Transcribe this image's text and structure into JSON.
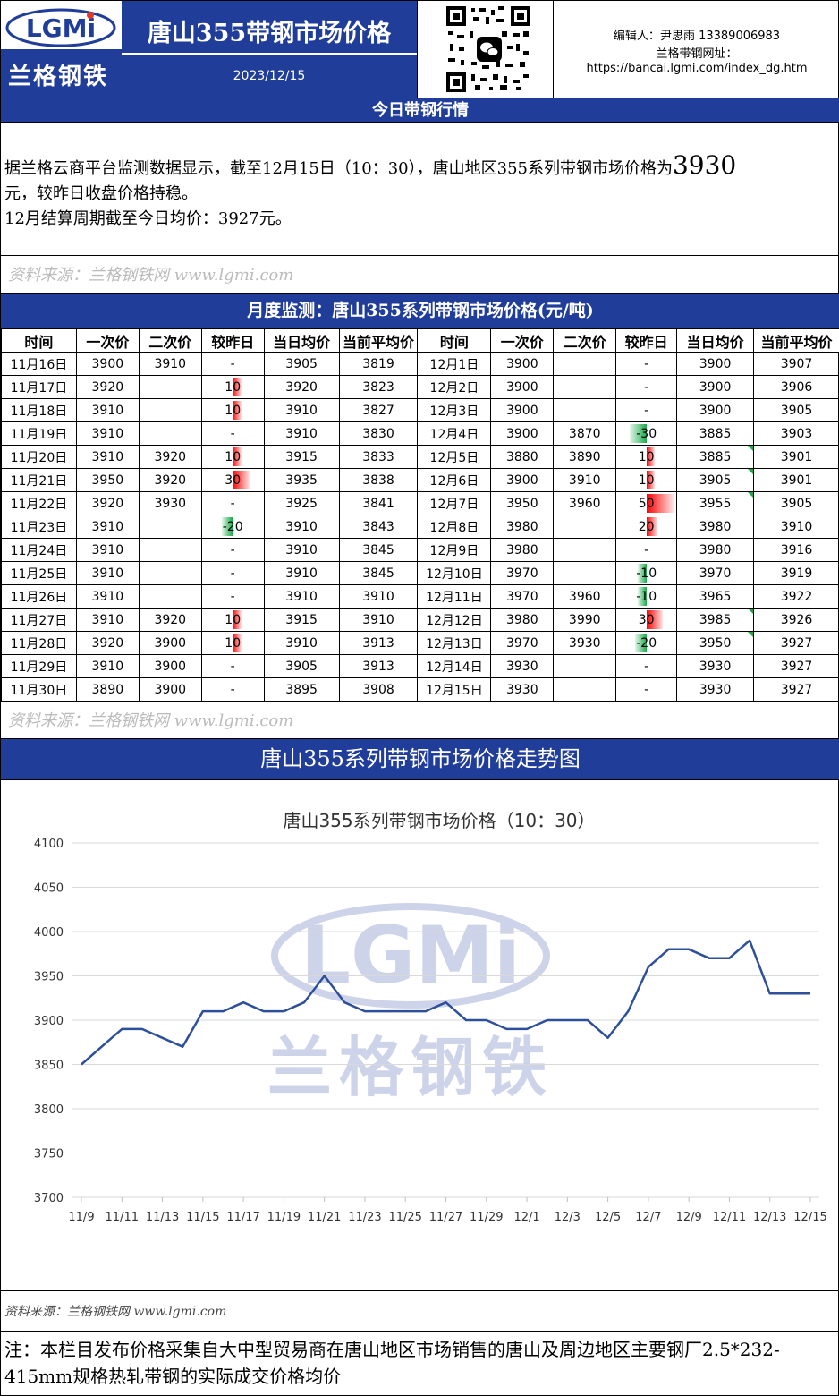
{
  "header": {
    "logo_text": "LGMi",
    "logo_cn": "兰格钢铁",
    "title": "唐山355带钢市场价格",
    "date": "2023/12/15",
    "editor_label": "编辑人：",
    "editor_name": "尹思雨",
    "editor_phone": "13389006983",
    "site_label": "兰格带钢网址：",
    "site_url": "https://bancai.lgmi.com/index_dg.htm"
  },
  "today": {
    "bar_title": "今日带钢行情",
    "line1_prefix": "据兰格云商平台监测数据显示，截至12月15日（10：30），唐山地区355系列带钢市场价格为",
    "price": "3930",
    "line2": "元，较昨日收盘价格持稳。",
    "line3": "12月结算周期截至今日均价：3927元。",
    "source": "资料来源：兰格钢铁网 www.lgmi.com"
  },
  "monthly": {
    "bar_title": "月度监测：唐山355系列带钢市场价格(元/吨)",
    "headers": [
      "时间",
      "一次价",
      "二次价",
      "较昨日",
      "当日均价",
      "当前平均价",
      "时间",
      "一次价",
      "二次价",
      "较昨日",
      "当日均价",
      "当前平均价"
    ],
    "left_rows": [
      {
        "date": "11月16日",
        "p1": "3900",
        "p2": "3910",
        "cmp": "-",
        "avg": "3905",
        "cur": "3819"
      },
      {
        "date": "11月17日",
        "p1": "3920",
        "p2": "",
        "cmp": "10",
        "avg": "3920",
        "cur": "3823"
      },
      {
        "date": "11月18日",
        "p1": "3910",
        "p2": "",
        "cmp": "10",
        "avg": "3910",
        "cur": "3827"
      },
      {
        "date": "11月19日",
        "p1": "3910",
        "p2": "",
        "cmp": "-",
        "avg": "3910",
        "cur": "3830"
      },
      {
        "date": "11月20日",
        "p1": "3910",
        "p2": "3920",
        "cmp": "10",
        "avg": "3915",
        "cur": "3833"
      },
      {
        "date": "11月21日",
        "p1": "3950",
        "p2": "3920",
        "cmp": "30",
        "avg": "3935",
        "cur": "3838"
      },
      {
        "date": "11月22日",
        "p1": "3920",
        "p2": "3930",
        "cmp": "-",
        "avg": "3925",
        "cur": "3841"
      },
      {
        "date": "11月23日",
        "p1": "3910",
        "p2": "",
        "cmp": "-20",
        "avg": "3910",
        "cur": "3843"
      },
      {
        "date": "11月24日",
        "p1": "3910",
        "p2": "",
        "cmp": "-",
        "avg": "3910",
        "cur": "3845"
      },
      {
        "date": "11月25日",
        "p1": "3910",
        "p2": "",
        "cmp": "-",
        "avg": "3910",
        "cur": "3845"
      },
      {
        "date": "11月26日",
        "p1": "3910",
        "p2": "",
        "cmp": "-",
        "avg": "3910",
        "cur": "3910"
      },
      {
        "date": "11月27日",
        "p1": "3910",
        "p2": "3920",
        "cmp": "10",
        "avg": "3915",
        "cur": "3910"
      },
      {
        "date": "11月28日",
        "p1": "3920",
        "p2": "3900",
        "cmp": "10",
        "avg": "3910",
        "cur": "3913"
      },
      {
        "date": "11月29日",
        "p1": "3910",
        "p2": "3900",
        "cmp": "-",
        "avg": "3905",
        "cur": "3913"
      },
      {
        "date": "11月30日",
        "p1": "3890",
        "p2": "3900",
        "cmp": "-",
        "avg": "3895",
        "cur": "3908"
      }
    ],
    "right_rows": [
      {
        "date": "12月1日",
        "p1": "3900",
        "p2": "",
        "cmp": "-",
        "avg": "3900",
        "cur": "3907",
        "mark": false
      },
      {
        "date": "12月2日",
        "p1": "3900",
        "p2": "",
        "cmp": "-",
        "avg": "3900",
        "cur": "3906",
        "mark": false
      },
      {
        "date": "12月3日",
        "p1": "3900",
        "p2": "",
        "cmp": "-",
        "avg": "3900",
        "cur": "3905",
        "mark": false
      },
      {
        "date": "12月4日",
        "p1": "3900",
        "p2": "3870",
        "cmp": "-30",
        "avg": "3885",
        "cur": "3903",
        "mark": false
      },
      {
        "date": "12月5日",
        "p1": "3880",
        "p2": "3890",
        "cmp": "10",
        "avg": "3885",
        "cur": "3901",
        "mark": true
      },
      {
        "date": "12月6日",
        "p1": "3900",
        "p2": "3910",
        "cmp": "10",
        "avg": "3905",
        "cur": "3901",
        "mark": true
      },
      {
        "date": "12月7日",
        "p1": "3950",
        "p2": "3960",
        "cmp": "50",
        "avg": "3955",
        "cur": "3905",
        "mark": true
      },
      {
        "date": "12月8日",
        "p1": "3980",
        "p2": "",
        "cmp": "20",
        "avg": "3980",
        "cur": "3910",
        "mark": false
      },
      {
        "date": "12月9日",
        "p1": "3980",
        "p2": "",
        "cmp": "-",
        "avg": "3980",
        "cur": "3916",
        "mark": false
      },
      {
        "date": "12月10日",
        "p1": "3970",
        "p2": "",
        "cmp": "-10",
        "avg": "3970",
        "cur": "3919",
        "mark": false
      },
      {
        "date": "12月11日",
        "p1": "3970",
        "p2": "3960",
        "cmp": "-10",
        "avg": "3965",
        "cur": "3922",
        "mark": false
      },
      {
        "date": "12月12日",
        "p1": "3980",
        "p2": "3990",
        "cmp": "30",
        "avg": "3985",
        "cur": "3926",
        "mark": true
      },
      {
        "date": "12月13日",
        "p1": "3970",
        "p2": "3930",
        "cmp": "-20",
        "avg": "3950",
        "cur": "3927",
        "mark": true
      },
      {
        "date": "12月14日",
        "p1": "3930",
        "p2": "",
        "cmp": "-",
        "avg": "3930",
        "cur": "3927",
        "mark": false
      },
      {
        "date": "12月15日",
        "p1": "3930",
        "p2": "",
        "cmp": "-",
        "avg": "3930",
        "cur": "3927",
        "mark": false
      }
    ],
    "source": "资料来源：兰格钢铁网 www.lgmi.com"
  },
  "trend": {
    "bar_title": "唐山355系列带钢市场价格走势图",
    "source": "资料来源：兰格钢铁网 www.lgmi.com",
    "watermark_en": "LGMi",
    "watermark_cn": "兰格钢铁",
    "colors": {
      "line": "#2e4f9a",
      "grid": "#d9d9d9",
      "bar": "#1f3d99"
    }
  },
  "chart_data": {
    "type": "line",
    "title": "唐山355系列带钢市场价格（10：30）",
    "xlabel": "",
    "ylabel": "",
    "ylim": [
      3700,
      4100
    ],
    "yticks": [
      "4100",
      "4050",
      "4000",
      "3950",
      "3900",
      "3850",
      "3800",
      "3750",
      "3700"
    ],
    "xtick_labels": [
      "11/9",
      "11/11",
      "11/13",
      "11/15",
      "11/17",
      "11/19",
      "11/21",
      "11/23",
      "11/25",
      "11/27",
      "11/29",
      "12/1",
      "12/3",
      "12/5",
      "12/7",
      "12/9",
      "12/11",
      "12/13",
      "12/15"
    ],
    "grid": true,
    "x": [
      "11/9",
      "11/10",
      "11/11",
      "11/12",
      "11/13",
      "11/14",
      "11/15",
      "11/16",
      "11/17",
      "11/18",
      "11/19",
      "11/20",
      "11/21",
      "11/22",
      "11/23",
      "11/24",
      "11/25",
      "11/26",
      "11/27",
      "11/28",
      "11/29",
      "11/30",
      "12/1",
      "12/2",
      "12/3",
      "12/4",
      "12/5",
      "12/6",
      "12/7",
      "12/8",
      "12/9",
      "12/10",
      "12/11",
      "12/12",
      "12/13",
      "12/14",
      "12/15"
    ],
    "values": [
      3850,
      3870,
      3890,
      3890,
      3880,
      3870,
      3910,
      3910,
      3920,
      3910,
      3910,
      3920,
      3950,
      3920,
      3910,
      3910,
      3910,
      3910,
      3920,
      3900,
      3900,
      3890,
      3890,
      3900,
      3900,
      3900,
      3880,
      3910,
      3960,
      3980,
      3980,
      3970,
      3970,
      3990,
      3930,
      3930,
      3930
    ]
  },
  "note": "注：本栏目发布价格采集自大中型贸易商在唐山地区市场销售的唐山及周边地区主要钢厂2.5*232-415mm规格热轧带钢的实际成交价格均价"
}
